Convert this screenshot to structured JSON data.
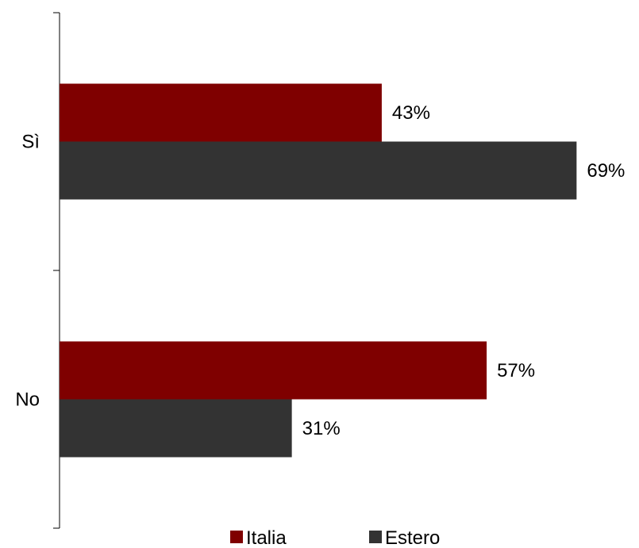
{
  "chart_data": {
    "type": "bar",
    "orientation": "horizontal",
    "categories": [
      "Sì",
      "No"
    ],
    "series": [
      {
        "name": "Italia",
        "color": "#7f0000",
        "values": [
          43,
          57
        ],
        "labels": [
          "43%",
          "57%"
        ]
      },
      {
        "name": "Estero",
        "color": "#333333",
        "values": [
          69,
          31
        ],
        "labels": [
          "69%",
          "31%"
        ]
      }
    ],
    "xlim": [
      0,
      100
    ],
    "value_suffix": "%",
    "grid": false,
    "legend_position": "bottom"
  }
}
